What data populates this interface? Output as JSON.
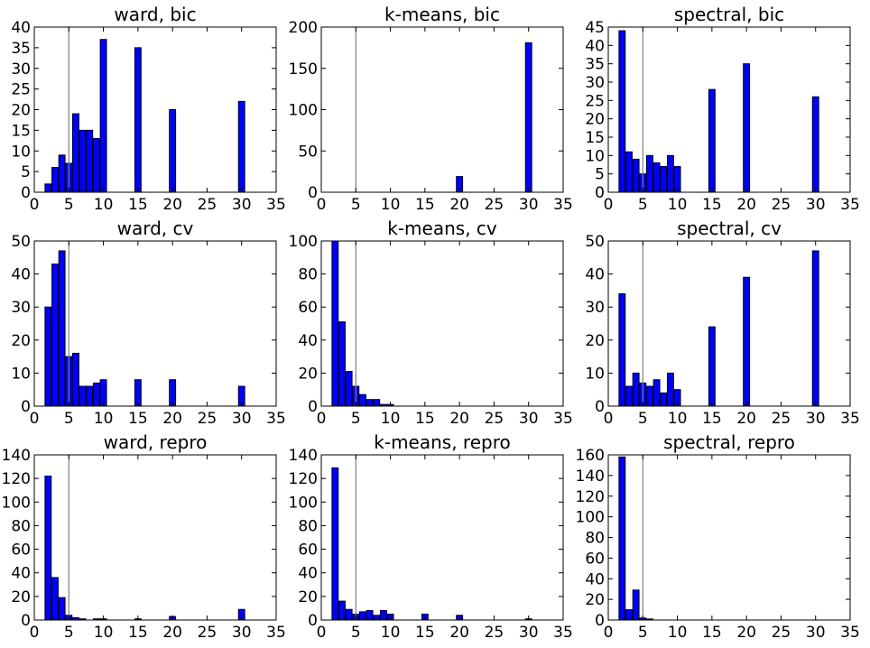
{
  "chart_data": [
    {
      "type": "bar",
      "title": "ward, bic",
      "xlim": [
        0,
        35
      ],
      "ylim": [
        0,
        40
      ],
      "xticks": [
        0,
        5,
        10,
        15,
        20,
        25,
        30,
        35
      ],
      "yticks": [
        0,
        5,
        10,
        15,
        20,
        25,
        30,
        35,
        40
      ],
      "vline": 5,
      "x": [
        2,
        3,
        4,
        5,
        6,
        7,
        8,
        9,
        10,
        15,
        20,
        30
      ],
      "values": [
        2,
        6,
        9,
        7,
        19,
        15,
        15,
        13,
        37,
        35,
        20,
        22
      ]
    },
    {
      "type": "bar",
      "title": "k-means, bic",
      "xlim": [
        0,
        35
      ],
      "ylim": [
        0,
        200
      ],
      "xticks": [
        0,
        5,
        10,
        15,
        20,
        25,
        30,
        35
      ],
      "yticks": [
        0,
        50,
        100,
        150,
        200
      ],
      "vline": 5,
      "x": [
        20,
        30
      ],
      "values": [
        19,
        181
      ]
    },
    {
      "type": "bar",
      "title": "spectral, bic",
      "xlim": [
        0,
        35
      ],
      "ylim": [
        0,
        45
      ],
      "xticks": [
        0,
        5,
        10,
        15,
        20,
        25,
        30,
        35
      ],
      "yticks": [
        0,
        5,
        10,
        15,
        20,
        25,
        30,
        35,
        40,
        45
      ],
      "vline": 5,
      "x": [
        2,
        3,
        4,
        5,
        6,
        7,
        8,
        9,
        10,
        15,
        20,
        30
      ],
      "values": [
        44,
        11,
        9,
        5,
        10,
        8,
        7,
        10,
        7,
        28,
        35,
        26
      ]
    },
    {
      "type": "bar",
      "title": "ward, cv",
      "xlim": [
        0,
        35
      ],
      "ylim": [
        0,
        50
      ],
      "xticks": [
        0,
        5,
        10,
        15,
        20,
        25,
        30,
        35
      ],
      "yticks": [
        0,
        10,
        20,
        30,
        40,
        50
      ],
      "vline": 5,
      "x": [
        2,
        3,
        4,
        5,
        6,
        7,
        8,
        9,
        10,
        15,
        20,
        30
      ],
      "values": [
        30,
        43,
        47,
        15,
        16,
        6,
        6,
        7,
        8,
        8,
        8,
        6
      ]
    },
    {
      "type": "bar",
      "title": "k-means, cv",
      "xlim": [
        0,
        35
      ],
      "ylim": [
        0,
        100
      ],
      "xticks": [
        0,
        5,
        10,
        15,
        20,
        25,
        30,
        35
      ],
      "yticks": [
        0,
        20,
        40,
        60,
        80,
        100
      ],
      "vline": 5,
      "x": [
        2,
        3,
        4,
        5,
        6,
        7,
        8,
        9,
        10
      ],
      "values": [
        100,
        51,
        21,
        12,
        7,
        4,
        4,
        1,
        1
      ]
    },
    {
      "type": "bar",
      "title": "spectral, cv",
      "xlim": [
        0,
        35
      ],
      "ylim": [
        0,
        50
      ],
      "xticks": [
        0,
        5,
        10,
        15,
        20,
        25,
        30,
        35
      ],
      "yticks": [
        0,
        10,
        20,
        30,
        40,
        50
      ],
      "vline": 5,
      "x": [
        2,
        3,
        4,
        5,
        6,
        7,
        8,
        9,
        10,
        15,
        20,
        30
      ],
      "values": [
        34,
        6,
        10,
        7,
        6,
        8,
        4,
        10,
        5,
        24,
        39,
        47
      ]
    },
    {
      "type": "bar",
      "title": "ward, repro",
      "xlim": [
        0,
        35
      ],
      "ylim": [
        0,
        140
      ],
      "xticks": [
        0,
        5,
        10,
        15,
        20,
        25,
        30,
        35
      ],
      "yticks": [
        0,
        20,
        40,
        60,
        80,
        100,
        120,
        140
      ],
      "vline": 5,
      "x": [
        2,
        3,
        4,
        5,
        6,
        7,
        9,
        10,
        15,
        20,
        30
      ],
      "values": [
        122,
        36,
        19,
        4,
        2,
        1,
        1,
        1,
        1,
        3,
        9
      ]
    },
    {
      "type": "bar",
      "title": "k-means, repro",
      "xlim": [
        0,
        35
      ],
      "ylim": [
        0,
        140
      ],
      "xticks": [
        0,
        5,
        10,
        15,
        20,
        25,
        30,
        35
      ],
      "yticks": [
        0,
        20,
        40,
        60,
        80,
        100,
        120,
        140
      ],
      "vline": 5,
      "x": [
        2,
        3,
        4,
        5,
        6,
        7,
        8,
        9,
        10,
        15,
        20,
        30
      ],
      "values": [
        129,
        16,
        9,
        5,
        7,
        8,
        4,
        8,
        5,
        5,
        4,
        1
      ]
    },
    {
      "type": "bar",
      "title": "spectral, repro",
      "xlim": [
        0,
        35
      ],
      "ylim": [
        0,
        160
      ],
      "xticks": [
        0,
        5,
        10,
        15,
        20,
        25,
        30,
        35
      ],
      "yticks": [
        0,
        20,
        40,
        60,
        80,
        100,
        120,
        140,
        160
      ],
      "vline": 5,
      "x": [
        2,
        3,
        4,
        5,
        6
      ],
      "values": [
        158,
        10,
        29,
        2,
        1
      ]
    }
  ],
  "colors": {
    "bar_fill": "#0000ff",
    "bar_edge": "#000000",
    "vline": "#808080",
    "axes": "#000000",
    "background": "#ffffff"
  }
}
